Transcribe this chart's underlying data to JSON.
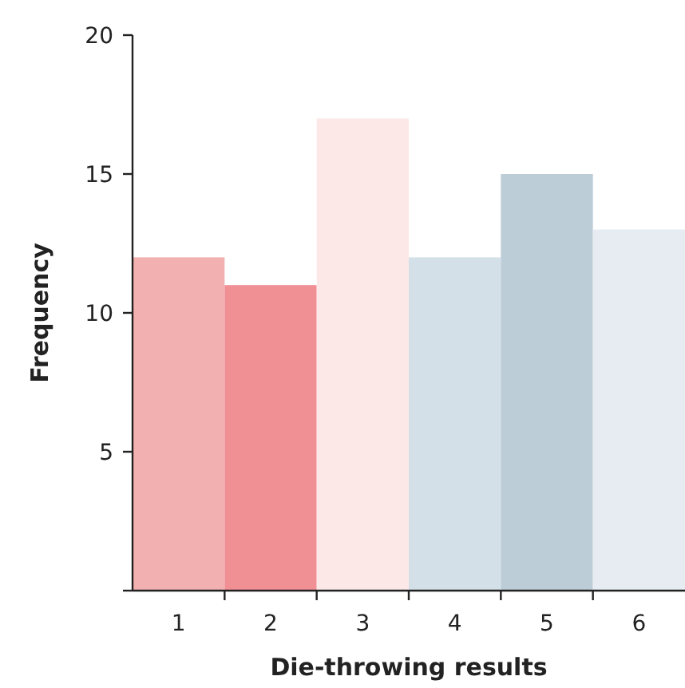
{
  "chart_data": {
    "type": "bar",
    "xlabel": "Die-throwing results",
    "ylabel": "Frequency",
    "categories": [
      "1",
      "2",
      "3",
      "4",
      "5",
      "6"
    ],
    "values": [
      12,
      11,
      17,
      12,
      15,
      13
    ],
    "colors": [
      "#f2b0b0",
      "#f08f94",
      "#fde8e8",
      "#d3e0e8",
      "#bccdd8",
      "#e6ecf2"
    ],
    "ylim": [
      0,
      20
    ],
    "yticks": [
      {
        "value": 0,
        "label": null
      },
      5,
      10,
      15,
      20
    ],
    "grid": false
  }
}
